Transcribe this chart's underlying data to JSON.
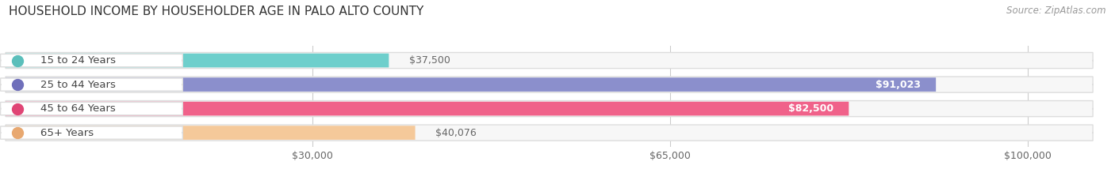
{
  "title": "HOUSEHOLD INCOME BY HOUSEHOLDER AGE IN PALO ALTO COUNTY",
  "source": "Source: ZipAtlas.com",
  "categories": [
    "15 to 24 Years",
    "25 to 44 Years",
    "45 to 64 Years",
    "65+ Years"
  ],
  "values": [
    37500,
    91023,
    82500,
    40076
  ],
  "bar_colors": [
    "#6ecfcc",
    "#8b8fcc",
    "#f0628a",
    "#f5c99a"
  ],
  "dot_colors": [
    "#5bbfbb",
    "#7070bb",
    "#e04575",
    "#e8a870"
  ],
  "value_labels": [
    "$37,500",
    "$91,023",
    "$82,500",
    "$40,076"
  ],
  "value_inside": [
    false,
    true,
    true,
    false
  ],
  "x_ticks": [
    30000,
    65000,
    100000
  ],
  "x_tick_labels": [
    "$30,000",
    "$65,000",
    "$100,000"
  ],
  "xlim_max": 108000,
  "bg_color": "#ffffff",
  "pill_bg_color": "#f0f0f0",
  "pill_border_color": "#dddddd",
  "title_fontsize": 11,
  "source_fontsize": 8.5,
  "label_fontsize": 9.5,
  "value_fontsize": 9,
  "tick_fontsize": 9
}
